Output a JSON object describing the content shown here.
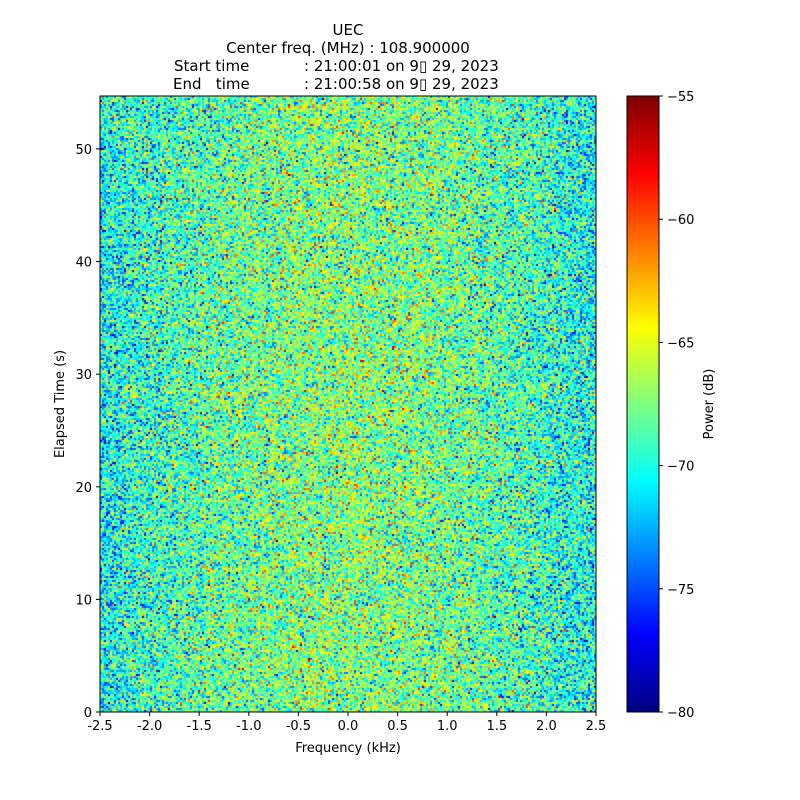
{
  "chart_data": {
    "type": "heatmap",
    "title": "UEC",
    "subtitle_lines": [
      "Center freq. (MHz) : 108.900000",
      {
        "label": "Start time",
        "value": ": 21:00:01 on 9▯ 29, 2023"
      },
      {
        "label": "End   time",
        "value": ": 21:00:58 on 9▯ 29, 2023"
      }
    ],
    "xlabel": "Frequency (kHz)",
    "ylabel": "Elapsed Time (s)",
    "xlim": [
      -2.5,
      2.5
    ],
    "ylim": [
      0,
      54.7
    ],
    "xticks": [
      "-2.5",
      "-2.0",
      "-1.5",
      "-1.0",
      "-0.5",
      "0.0",
      "0.5",
      "1.0",
      "1.5",
      "2.0",
      "2.5"
    ],
    "yticks": [
      "0",
      "10",
      "20",
      "30",
      "40",
      "50"
    ],
    "colorbar": {
      "label": "Power (dB)",
      "colormap": "jet",
      "range": [
        -80,
        -55
      ],
      "ticks": [
        "−80",
        "−75",
        "−70",
        "−65",
        "−60",
        "−55"
      ]
    },
    "z_summary": {
      "mean_db": -69,
      "center_mean_db": -67.5,
      "edge_mean_db": -70.5,
      "std_db": 3.2
    }
  }
}
